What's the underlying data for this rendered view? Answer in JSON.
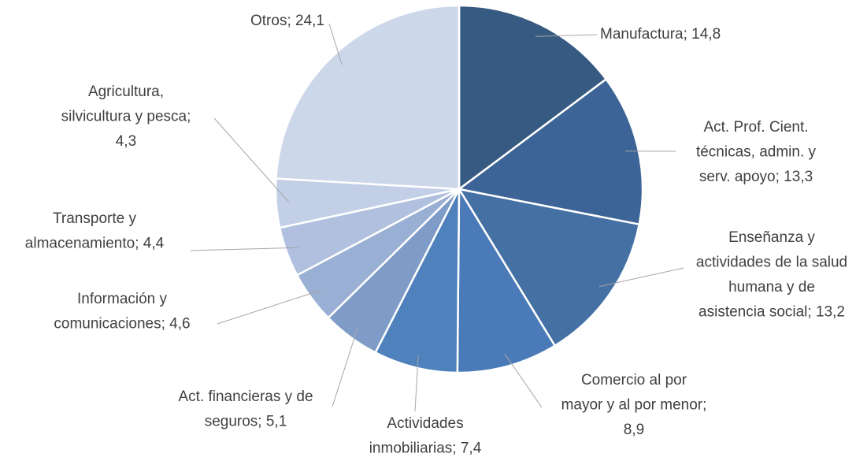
{
  "chart_data": {
    "type": "pie",
    "values": [
      14.8,
      13.3,
      13.2,
      8.9,
      7.4,
      5.1,
      4.6,
      4.4,
      4.3,
      24.1
    ],
    "value_labels": [
      [
        "Manufactura; 14,8"
      ],
      [
        "Act. Prof. Cient.",
        "técnicas, admin. y",
        "serv. apoyo; 13,3"
      ],
      [
        "Enseñanza y",
        "actividades de la salud",
        "humana y de",
        "asistencia social; 13,2"
      ],
      [
        "Comercio al por",
        "mayor y al por menor;",
        "8,9"
      ],
      [
        "Actividades",
        "inmobiliarias; 7,4"
      ],
      [
        "Act. financieras y de",
        "seguros; 5,1"
      ],
      [
        "Información y",
        "comunicaciones; 4,6"
      ],
      [
        "Transporte y",
        "almacenamiento; 4,4"
      ],
      [
        "Agricultura,",
        "silvicultura y pesca;",
        "4,3"
      ],
      [
        "Otros; 24,1"
      ]
    ],
    "colors": [
      "#375a82",
      "#3d6496",
      "#4470a4",
      "#4a7bb8",
      "#4f81bd",
      "#7f9cc8",
      "#9aafd4",
      "#b0c0de",
      "#c3cfe6",
      "#cdd7ea"
    ]
  }
}
